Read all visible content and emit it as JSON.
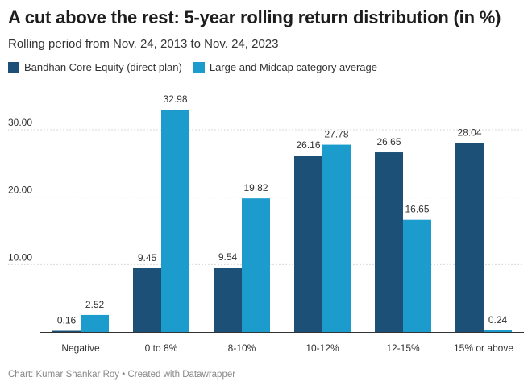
{
  "title": "A cut above the rest: 5-year rolling return distribution (in %)",
  "subtitle": "Rolling period from Nov. 24, 2013 to Nov. 24, 2023",
  "footer": "Chart: Kumar Shankar Roy • Created with Datawrapper",
  "colors": {
    "series1": "#1d5077",
    "series2": "#1b9ccd",
    "grid": "#d9d9d9",
    "axis": "#333333"
  },
  "chart_data": {
    "type": "bar",
    "categories": [
      "Negative",
      "0 to 8%",
      "8-10%",
      "10-12%",
      "12-15%",
      "15% or above"
    ],
    "series": [
      {
        "name": "Bandhan Core Equity (direct plan)",
        "values": [
          0.16,
          9.45,
          9.54,
          26.16,
          26.65,
          28.04
        ],
        "labels": [
          "0.16",
          "9.45",
          "9.54",
          "26.16",
          "26.65",
          "28.04"
        ]
      },
      {
        "name": "Large and Midcap category average",
        "values": [
          2.52,
          32.98,
          19.82,
          27.78,
          16.65,
          0.24
        ],
        "labels": [
          "2.52",
          "32.98",
          "19.82",
          "27.78",
          "16.65",
          "0.24"
        ]
      }
    ],
    "yticks": [
      10,
      20,
      30
    ],
    "ytick_labels": [
      "10.00",
      "20.00",
      "30.00"
    ],
    "ylim": [
      0,
      34
    ],
    "grid": true,
    "legend_position": "top-left"
  }
}
